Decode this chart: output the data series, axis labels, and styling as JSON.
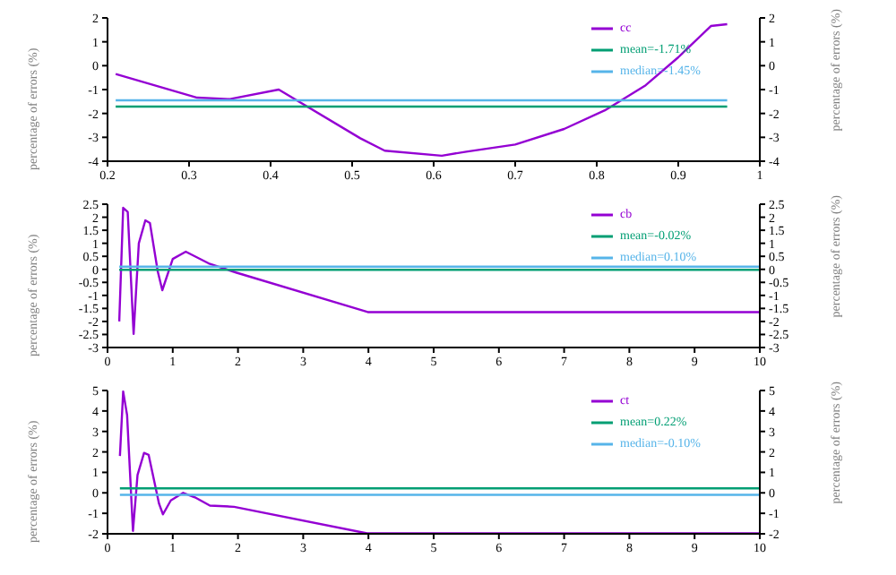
{
  "chart_data": [
    {
      "type": "line",
      "ylabel": "percentage of errors (%)",
      "y2label": "percentage of errors (%)",
      "xlim": [
        0.2,
        1
      ],
      "xticks": [
        0.2,
        0.3,
        0.4,
        0.5,
        0.6,
        0.7,
        0.8,
        0.9,
        1
      ],
      "ylim": [
        -4,
        2
      ],
      "yticks": [
        -4,
        -3,
        -2,
        -1,
        0,
        1,
        2
      ],
      "y2lim": [
        -4,
        2
      ],
      "y2ticks": [
        -4,
        -3,
        -2,
        -1,
        0,
        1,
        2
      ],
      "legend": "top right",
      "grid": false,
      "marker": "none",
      "line_style": "solid",
      "series": [
        {
          "name": "cc",
          "color": "#9400d3",
          "x": [
            0.21,
            0.31,
            0.35,
            0.41,
            0.51,
            0.54,
            0.61,
            0.64,
            0.7,
            0.76,
            0.81,
            0.86,
            0.9,
            0.94,
            0.96
          ],
          "values": [
            -0.35,
            -1.34,
            -1.4,
            -1.0,
            -3.04,
            -3.56,
            -3.77,
            -3.6,
            -3.3,
            -2.65,
            -1.87,
            -0.82,
            0.35,
            1.66,
            1.74
          ]
        },
        {
          "name": "mean=-1.71%",
          "color": "#009e73",
          "x": [
            0.21,
            0.96
          ],
          "values": [
            -1.71,
            -1.71
          ]
        },
        {
          "name": "median=-1.45%",
          "color": "#56b4e9",
          "x": [
            0.21,
            0.96
          ],
          "values": [
            -1.45,
            -1.45
          ]
        }
      ]
    },
    {
      "type": "line",
      "ylabel": "percentage of errors (%)",
      "y2label": "percentage of errors (%)",
      "xlim": [
        0,
        10
      ],
      "xticks": [
        0,
        1,
        2,
        3,
        4,
        5,
        6,
        7,
        8,
        9,
        10
      ],
      "ylim": [
        -3,
        2.5
      ],
      "yticks": [
        -3,
        -2.5,
        -2,
        -1.5,
        -1,
        -0.5,
        0,
        0.5,
        1,
        1.5,
        2,
        2.5
      ],
      "y2lim": [
        -3,
        2.5
      ],
      "y2ticks": [
        -3,
        -2.5,
        -2,
        -1.5,
        -1,
        -0.5,
        0,
        0.5,
        1,
        1.5,
        2,
        2.5
      ],
      "legend": "top right",
      "grid": false,
      "marker": "none",
      "line_style": "solid",
      "series": [
        {
          "name": "cb",
          "color": "#9400d3",
          "x": [
            0.18,
            0.24,
            0.31,
            0.4,
            0.48,
            0.58,
            0.65,
            0.77,
            0.84,
            1.0,
            1.2,
            1.55,
            1.98,
            3.99,
            10
          ],
          "values": [
            -2.0,
            2.36,
            2.2,
            -2.48,
            1.0,
            1.88,
            1.78,
            -0.08,
            -0.8,
            0.4,
            0.68,
            0.23,
            -0.13,
            -1.64,
            -1.64
          ]
        },
        {
          "name": "mean=-0.02%",
          "color": "#009e73",
          "x": [
            0.18,
            10
          ],
          "values": [
            -0.02,
            -0.02
          ]
        },
        {
          "name": "median=0.10%",
          "color": "#56b4e9",
          "x": [
            0.18,
            10
          ],
          "values": [
            0.1,
            0.1
          ]
        }
      ]
    },
    {
      "type": "line",
      "ylabel": "percentage of errors (%)",
      "y2label": "percentage of errors (%)",
      "xlim": [
        0,
        10
      ],
      "xticks": [
        0,
        1,
        2,
        3,
        4,
        5,
        6,
        7,
        8,
        9,
        10
      ],
      "ylim": [
        -2,
        5
      ],
      "yticks": [
        -2,
        -1,
        0,
        1,
        2,
        3,
        4,
        5
      ],
      "y2lim": [
        -2,
        5
      ],
      "y2ticks": [
        -2,
        -1,
        0,
        1,
        2,
        3,
        4,
        5
      ],
      "legend": "top right",
      "grid": false,
      "marker": "none",
      "line_style": "solid",
      "series": [
        {
          "name": "ct",
          "color": "#9400d3",
          "x": [
            0.19,
            0.24,
            0.3,
            0.39,
            0.46,
            0.56,
            0.63,
            0.79,
            0.85,
            0.97,
            1.16,
            1.34,
            1.57,
            1.94,
            3.98,
            10
          ],
          "values": [
            1.8,
            4.95,
            3.8,
            -1.86,
            0.87,
            1.95,
            1.86,
            -0.53,
            -1.05,
            -0.37,
            0,
            -0.22,
            -0.62,
            -0.68,
            -1.98,
            -1.98
          ]
        },
        {
          "name": "mean=0.22%",
          "color": "#009e73",
          "x": [
            0.19,
            10
          ],
          "values": [
            0.22,
            0.22
          ]
        },
        {
          "name": "median=-0.10%",
          "color": "#56b4e9",
          "x": [
            0.19,
            10
          ],
          "values": [
            -0.1,
            -0.1
          ]
        }
      ]
    }
  ]
}
